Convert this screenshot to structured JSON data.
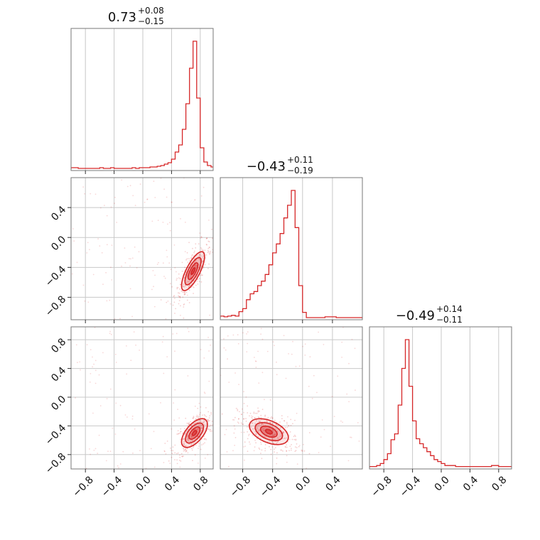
{
  "chart_data": {
    "type": "corner",
    "color": "#d62728",
    "params": [
      {
        "median": "0.73",
        "upper": "+0.08",
        "lower": "−0.15"
      },
      {
        "median": "−0.43",
        "upper": "+0.11",
        "lower": "−0.19"
      },
      {
        "median": "−0.49",
        "upper": "+0.14",
        "lower": "−0.11"
      }
    ],
    "ranges": [
      [
        -1.0,
        0.98
      ],
      [
        -1.1,
        0.8
      ],
      [
        -1.0,
        0.98
      ]
    ],
    "xticks": [
      [
        "−0.8",
        "−0.4",
        "0.0",
        "0.4",
        "0.8"
      ],
      [
        "−0.8",
        "−0.4",
        "0.0",
        "0.4"
      ],
      [
        "−0.8",
        "−0.4",
        "0.0",
        "0.4",
        "0.8"
      ]
    ],
    "tick_values": {
      "p0": [
        -0.8,
        -0.4,
        0.0,
        0.4,
        0.8
      ],
      "p1": [
        -0.8,
        -0.4,
        0.0,
        0.4
      ],
      "p2": [
        -0.8,
        -0.4,
        0.0,
        0.4,
        0.8
      ]
    },
    "yticks_row1": [
      "−0.8",
      "−0.4",
      "0.0",
      "0.4"
    ],
    "yticks_row2": [
      "−0.8",
      "−0.4",
      "0.0",
      "0.4",
      "0.8"
    ],
    "hist_p0": {
      "start": -1.0,
      "width": 0.05,
      "counts": [
        2,
        2,
        1,
        1,
        1,
        1,
        1,
        1,
        2,
        1,
        1,
        2,
        1,
        1,
        1,
        1,
        1,
        2,
        1,
        2,
        2,
        2,
        3,
        3,
        4,
        5,
        7,
        9,
        14,
        24,
        34,
        56,
        92,
        142,
        180,
        100,
        30,
        10,
        5,
        3
      ]
    },
    "hist_p1": {
      "start": -1.1,
      "width": 0.05,
      "counts": [
        3,
        2,
        3,
        4,
        3,
        9,
        13,
        25,
        33,
        36,
        44,
        50,
        59,
        72,
        88,
        100,
        114,
        135,
        152,
        172,
        122,
        44,
        8,
        1,
        1,
        1,
        1,
        1,
        2,
        2,
        2,
        1,
        1,
        1,
        1,
        1,
        1,
        1
      ]
    },
    "hist_p2": {
      "start": -1.0,
      "width": 0.05,
      "counts": [
        1,
        1,
        2,
        4,
        8,
        14,
        28,
        34,
        63,
        100,
        129,
        82,
        47,
        29,
        24,
        20,
        16,
        12,
        8,
        6,
        4,
        2,
        2,
        2,
        1,
        1,
        1,
        1,
        1,
        1,
        1,
        1,
        1,
        1,
        2,
        2,
        1,
        1,
        1,
        1
      ]
    },
    "joint_p0_p1": {
      "mean": [
        0.7,
        -0.45
      ],
      "sd": [
        0.08,
        0.13
      ],
      "rho": 0.75
    },
    "joint_p0_p2": {
      "mean": [
        0.72,
        -0.5
      ],
      "sd": [
        0.09,
        0.1
      ],
      "rho": 0.6
    },
    "joint_p1_p2": {
      "mean": [
        -0.45,
        -0.48
      ],
      "sd": [
        0.13,
        0.09
      ],
      "rho": -0.45
    },
    "grid": true
  }
}
